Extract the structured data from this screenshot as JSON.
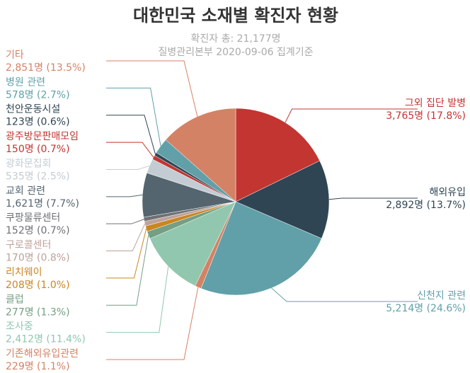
{
  "chart_data": {
    "type": "pie",
    "title": "대한민국 소재별 확진자 현황",
    "subtitle_lines": [
      "확진자 총: 21,177명",
      "질병관리본부 2020-09-06 집계기준"
    ],
    "total": 21177,
    "slices": [
      {
        "name": "그외 집단 발병",
        "value": 3765,
        "value_text": "3,765명",
        "pct_text": "(17.8%)",
        "color": "#c23531",
        "side": "right"
      },
      {
        "name": "해외유입",
        "value": 2892,
        "value_text": "2,892명",
        "pct_text": "(13.7%)",
        "color": "#2f4554",
        "side": "right"
      },
      {
        "name": "신천지 관련",
        "value": 5214,
        "value_text": "5,214명",
        "pct_text": "(24.6%)",
        "color": "#61a0a8",
        "side": "right"
      },
      {
        "name": "기존해외유입관련",
        "value": 229,
        "value_text": "229명",
        "pct_text": "(1.1%)",
        "color": "#d48265",
        "side": "left"
      },
      {
        "name": "조사중",
        "value": 2412,
        "value_text": "2,412명",
        "pct_text": "(11.4%)",
        "color": "#91c7ae",
        "side": "left"
      },
      {
        "name": "클럽",
        "value": 277,
        "value_text": "277명",
        "pct_text": "(1.3%)",
        "color": "#749f83",
        "side": "left"
      },
      {
        "name": "리치웨이",
        "value": 208,
        "value_text": "208명",
        "pct_text": "(1.0%)",
        "color": "#ca8622",
        "side": "left"
      },
      {
        "name": "구로콜센터",
        "value": 170,
        "value_text": "170명",
        "pct_text": "(0.8%)",
        "color": "#bda29a",
        "side": "left"
      },
      {
        "name": "쿠팡물류센터",
        "value": 152,
        "value_text": "152명",
        "pct_text": "(0.7%)",
        "color": "#6e7074",
        "side": "left"
      },
      {
        "name": "교회 관련",
        "value": 1621,
        "value_text": "1,621명",
        "pct_text": "(7.7%)",
        "color": "#546570",
        "side": "left"
      },
      {
        "name": "광화문집회",
        "value": 535,
        "value_text": "535명",
        "pct_text": "(2.5%)",
        "color": "#c4ccd3",
        "side": "left"
      },
      {
        "name": "광주방문판매모임",
        "value": 150,
        "value_text": "150명",
        "pct_text": "(0.7%)",
        "color": "#c23531",
        "side": "left"
      },
      {
        "name": "천안운동시설",
        "value": 123,
        "value_text": "123명",
        "pct_text": "(0.6%)",
        "color": "#2f4554",
        "side": "left"
      },
      {
        "name": "병원 관련",
        "value": 578,
        "value_text": "578명",
        "pct_text": "(2.7%)",
        "color": "#61a0a8",
        "side": "left"
      },
      {
        "name": "기타",
        "value": 2851,
        "value_text": "2,851명",
        "pct_text": "(13.5%)",
        "color": "#d48265",
        "side": "left"
      }
    ]
  }
}
